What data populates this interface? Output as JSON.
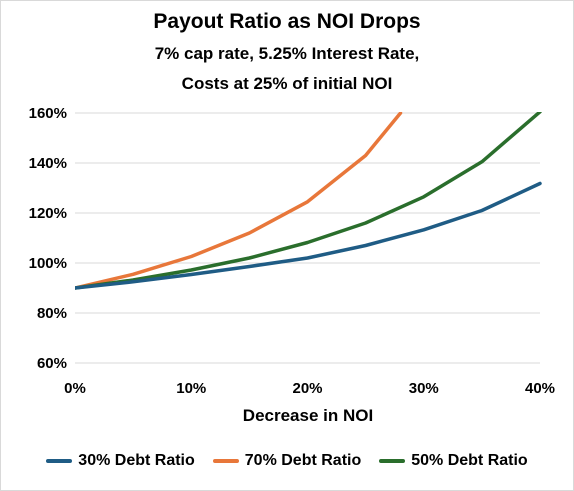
{
  "chart_data": {
    "type": "line",
    "title": "Payout Ratio as NOI Drops",
    "subtitle_line1": "7% cap rate, 5.25% Interest Rate,",
    "subtitle_line2": "Costs at 25% of initial NOI",
    "xlabel": "Decrease in NOI",
    "ylabel": "",
    "x": [
      0,
      5,
      10,
      15,
      20,
      25,
      30,
      35,
      40
    ],
    "xlim": [
      0,
      40
    ],
    "ylim": [
      60,
      160
    ],
    "x_ticks": [
      0,
      10,
      20,
      30,
      40
    ],
    "x_tick_labels": [
      "0%",
      "10%",
      "20%",
      "30%",
      "40%"
    ],
    "y_ticks": [
      60,
      80,
      100,
      120,
      140,
      160
    ],
    "y_tick_labels": [
      "60%",
      "80%",
      "100%",
      "120%",
      "140%",
      "160%"
    ],
    "grid": "horizontal",
    "legend_position": "bottom",
    "series": [
      {
        "name": "30% Debt Ratio",
        "color": "#1f5c85",
        "x": [
          0,
          5,
          10,
          15,
          20,
          25,
          30,
          35,
          40
        ],
        "values": [
          90,
          92.5,
          95.4,
          98.6,
          102,
          107,
          113.3,
          121,
          131.8
        ]
      },
      {
        "name": "70% Debt Ratio",
        "color": "#e8773a",
        "x": [
          0,
          5,
          10,
          15,
          20,
          25,
          28
        ],
        "values": [
          90,
          95.5,
          102.6,
          112,
          124.5,
          143,
          160
        ]
      },
      {
        "name": "50% Debt Ratio",
        "color": "#2a6e2c",
        "x": [
          0,
          5,
          10,
          15,
          20,
          25,
          30,
          35,
          40
        ],
        "values": [
          90,
          93.2,
          97.2,
          102,
          108.2,
          116,
          126.5,
          140.5,
          160.5
        ]
      }
    ]
  }
}
